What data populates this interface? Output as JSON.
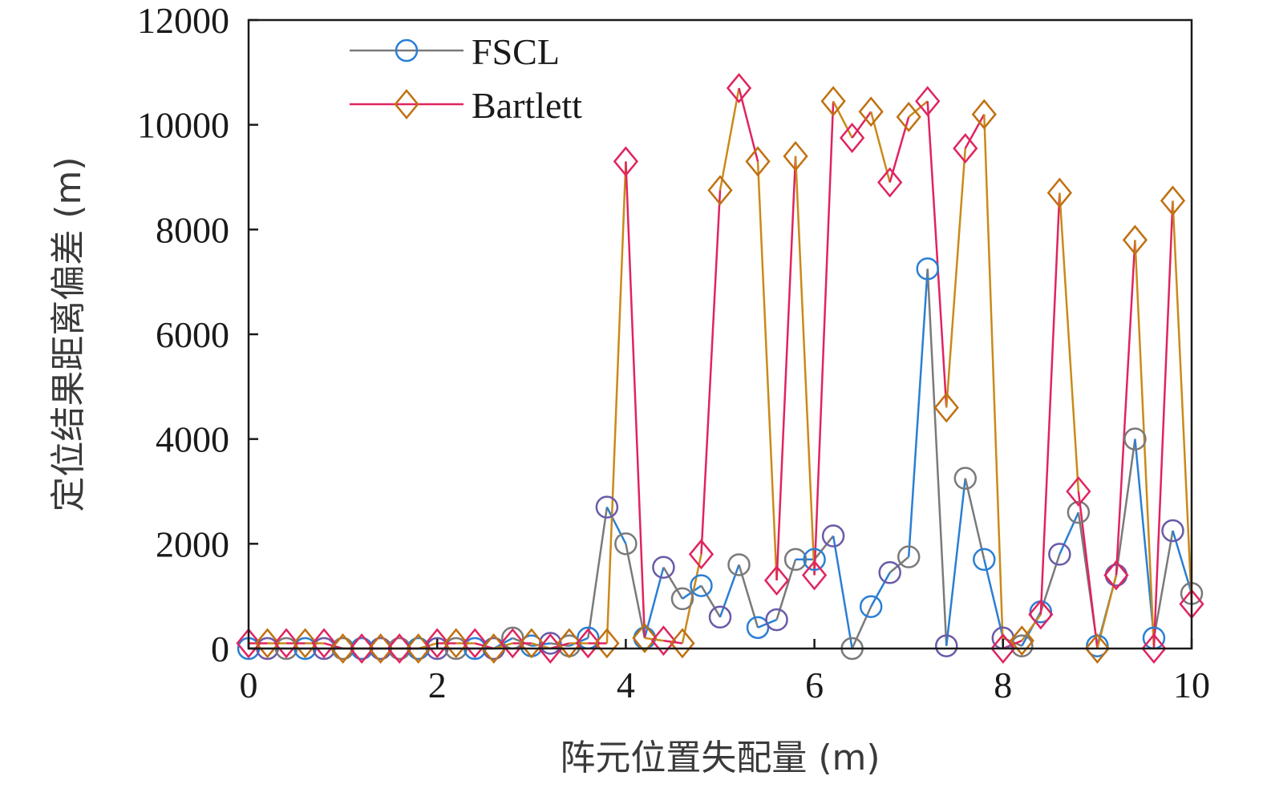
{
  "chart_data": {
    "type": "line",
    "xlabel": "阵元位置失配量 (m)",
    "ylabel": "定位结果距离偏差 (m)",
    "xlim": [
      0,
      10
    ],
    "ylim": [
      0,
      12000
    ],
    "x_ticks": [
      "0",
      "2",
      "4",
      "6",
      "8",
      "10"
    ],
    "y_ticks": [
      "0",
      "2000",
      "4000",
      "6000",
      "8000",
      "10000",
      "12000"
    ],
    "grid": false,
    "legend_position": "top-left",
    "x": [
      0,
      0.2,
      0.4,
      0.6,
      0.8,
      1.0,
      1.2,
      1.4,
      1.6,
      1.8,
      2.0,
      2.2,
      2.4,
      2.6,
      2.8,
      3.0,
      3.2,
      3.4,
      3.6,
      3.8,
      4.0,
      4.2,
      4.4,
      4.6,
      4.8,
      5.0,
      5.2,
      5.4,
      5.6,
      5.8,
      6.0,
      6.2,
      6.4,
      6.6,
      6.8,
      7.0,
      7.2,
      7.4,
      7.6,
      7.8,
      8.0,
      8.2,
      8.4,
      8.6,
      8.8,
      9.0,
      9.2,
      9.4,
      9.6,
      9.8,
      10.0
    ],
    "series": [
      {
        "name": "FSCL",
        "marker": "circle",
        "line_colors": [
          "#7a7a7a",
          "#2a7fd4"
        ],
        "marker_colors": [
          "#2a7fd4",
          "#6a5aa8",
          "#7a7a7a"
        ],
        "values": [
          0,
          0,
          0,
          0,
          0,
          0,
          0,
          0,
          0,
          0,
          0,
          0,
          0,
          0,
          200,
          50,
          100,
          50,
          200,
          2700,
          2000,
          200,
          1550,
          950,
          1200,
          600,
          1600,
          400,
          550,
          1700,
          1700,
          2150,
          0,
          800,
          1450,
          1750,
          7250,
          50,
          3250,
          1700,
          200,
          50,
          700,
          1800,
          2600,
          50,
          1400,
          4000,
          200,
          2250,
          1050
        ]
      },
      {
        "name": "Bartlett",
        "marker": "diamond",
        "line_colors": [
          "#e0245e",
          "#c98a1a"
        ],
        "marker_colors": [
          "#e0245e",
          "#c07010"
        ],
        "values": [
          100,
          100,
          100,
          100,
          100,
          0,
          0,
          0,
          0,
          0,
          100,
          100,
          100,
          0,
          100,
          100,
          0,
          100,
          100,
          100,
          9300,
          200,
          150,
          100,
          1800,
          8750,
          10700,
          9300,
          1300,
          9400,
          1400,
          10450,
          9750,
          10250,
          8900,
          10150,
          10450,
          4600,
          9550,
          10200,
          0,
          150,
          650,
          8700,
          3000,
          0,
          1400,
          7800,
          0,
          8550,
          850
        ]
      }
    ]
  }
}
